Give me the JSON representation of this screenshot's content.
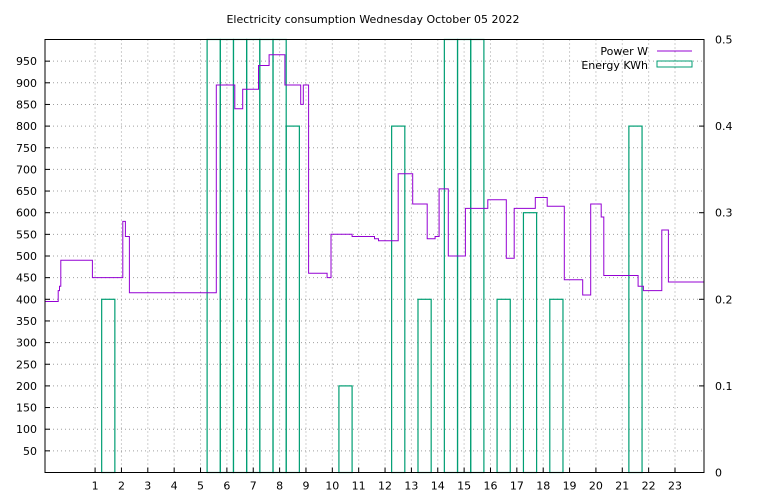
{
  "chart_data": {
    "type": "line",
    "title": "Electricity consumption Wednesday October 05 2022",
    "xlabel": "",
    "ylabel": "",
    "x_ticks": [
      "1",
      "2",
      "3",
      "4",
      "5",
      "6",
      "7",
      "8",
      "9",
      "10",
      "11",
      "12",
      "13",
      "14",
      "15",
      "16",
      "17",
      "18",
      "19",
      "20",
      "21",
      "22",
      "23"
    ],
    "y_ticks": [
      "50",
      "100",
      "150",
      "200",
      "250",
      "300",
      "350",
      "400",
      "450",
      "500",
      "550",
      "600",
      "650",
      "700",
      "750",
      "800",
      "850",
      "900",
      "950"
    ],
    "y2_ticks": [
      "0",
      "0.1",
      "0.2",
      "0.3",
      "0.4",
      "0.5"
    ],
    "xlim": [
      -0.9,
      24.1
    ],
    "ylim": [
      0,
      1000
    ],
    "y2lim": [
      0,
      0.5
    ],
    "grid": true,
    "legend_position": "top-right",
    "colors": {
      "power": "#9400d3",
      "energy": "#009e73",
      "grid": "#a0a0a0"
    },
    "series": [
      {
        "name": "Power W",
        "type": "step",
        "x": [
          -0.9,
          -0.4,
          -0.35,
          -0.3,
          0.9,
          1.9,
          2.05,
          2.15,
          2.3,
          4.5,
          5.1,
          5.6,
          6.3,
          6.6,
          7.2,
          7.6,
          8.2,
          8.5,
          8.8,
          8.85,
          8.9,
          9.1,
          9.8,
          9.95,
          10.75,
          11.6,
          11.75,
          12.5,
          12.6,
          13.05,
          13.5,
          13.6,
          13.9,
          14.05,
          14.4,
          15.05,
          15.9,
          16.6,
          16.9,
          17.7,
          18.15,
          18.8,
          19.5,
          19.8,
          20.2,
          20.3,
          21.6,
          21.75,
          21.8,
          22.5,
          22.75,
          24.1
        ],
        "y": [
          395,
          420,
          430,
          490,
          450,
          450,
          580,
          545,
          415,
          415,
          415,
          895,
          840,
          885,
          940,
          965,
          895,
          895,
          850,
          850,
          895,
          460,
          450,
          550,
          545,
          540,
          535,
          690,
          690,
          620,
          620,
          540,
          545,
          655,
          500,
          610,
          630,
          495,
          610,
          635,
          615,
          445,
          410,
          620,
          590,
          455,
          430,
          430,
          420,
          560,
          440,
          425
        ]
      },
      {
        "name": "Energy KWh",
        "type": "impulse-bar",
        "x": [
          1.5,
          5.5,
          6.0,
          6.5,
          7.0,
          7.5,
          8.0,
          8.5,
          10.5,
          12.5,
          13.5,
          14.5,
          15.0,
          15.5,
          16.5,
          17.5,
          18.5,
          21.5
        ],
        "y": [
          0.2,
          0.5,
          0.5,
          0.5,
          0.5,
          0.5,
          0.5,
          0.4,
          0.1,
          0.4,
          0.2,
          0.5,
          0.5,
          0.5,
          0.2,
          0.3,
          0.2,
          0.4
        ]
      }
    ]
  }
}
